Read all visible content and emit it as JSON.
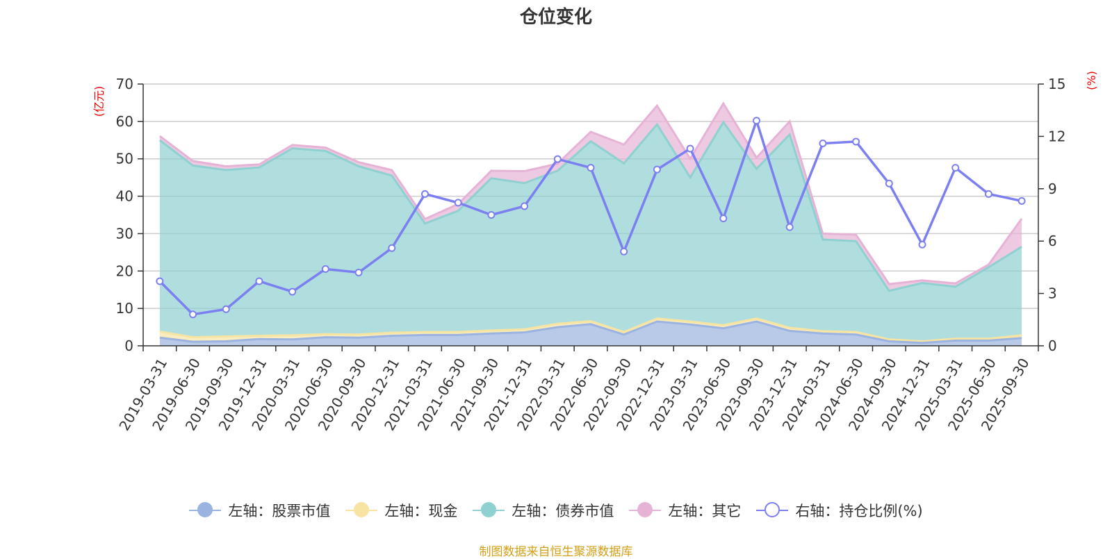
{
  "chart_data": {
    "type": "area",
    "title": "仓位变化",
    "categories": [
      "2019-03-31",
      "2019-06-30",
      "2019-09-30",
      "2019-12-31",
      "2020-03-31",
      "2020-06-30",
      "2020-09-30",
      "2020-12-31",
      "2021-03-31",
      "2021-06-30",
      "2021-09-30",
      "2021-12-31",
      "2022-03-31",
      "2022-06-30",
      "2022-09-30",
      "2022-12-31",
      "2023-03-31",
      "2023-06-30",
      "2023-09-30",
      "2023-12-31",
      "2024-03-31",
      "2024-06-30",
      "2024-09-30",
      "2024-12-31",
      "2025-03-31",
      "2025-06-30",
      "2025-09-30"
    ],
    "left_axis": {
      "label": "(亿元)",
      "ylim": [
        0,
        70
      ],
      "ticks": [
        0,
        10,
        20,
        30,
        40,
        50,
        60,
        70
      ]
    },
    "right_axis": {
      "label": "(%)",
      "ylim": [
        0,
        15
      ],
      "ticks": [
        0,
        3,
        6,
        9,
        12,
        15
      ]
    },
    "stacked": true,
    "series": [
      {
        "name": "左轴：股票市值",
        "axis": "left",
        "type": "area",
        "color": "#9bb3e0",
        "values": [
          2.2,
          1.1,
          1.2,
          1.8,
          1.7,
          2.3,
          2.2,
          2.7,
          2.9,
          2.9,
          3.3,
          3.6,
          5.0,
          5.8,
          3.0,
          6.5,
          5.7,
          4.7,
          6.5,
          4.0,
          3.3,
          3.0,
          1.2,
          0.8,
          1.4,
          1.4,
          2.1
        ]
      },
      {
        "name": "左轴：现金",
        "axis": "left",
        "type": "area",
        "color": "#f7e4a3",
        "values": [
          1.6,
          1.2,
          1.3,
          0.9,
          1.1,
          0.8,
          0.8,
          0.8,
          0.8,
          0.8,
          0.8,
          0.8,
          0.9,
          0.8,
          0.7,
          0.8,
          0.8,
          0.8,
          0.8,
          0.8,
          0.6,
          0.7,
          0.5,
          0.4,
          0.5,
          0.5,
          0.7
        ]
      },
      {
        "name": "左轴：债券市值",
        "axis": "left",
        "type": "area",
        "color": "#8fd0d0",
        "values": [
          51.2,
          45.9,
          44.5,
          45.0,
          50.0,
          49.0,
          45.0,
          42.0,
          29.0,
          32.4,
          40.7,
          39.1,
          40.9,
          48.1,
          45.1,
          51.9,
          38.5,
          54.3,
          40.0,
          51.7,
          24.5,
          24.3,
          13.0,
          15.6,
          13.9,
          19.1,
          23.7
        ]
      },
      {
        "name": "左轴：其它",
        "axis": "left",
        "type": "area",
        "color": "#e6b3d6",
        "values": [
          1.1,
          1.2,
          1.0,
          0.8,
          0.9,
          0.9,
          1.1,
          1.5,
          1.2,
          1.8,
          2.0,
          3.2,
          1.9,
          2.5,
          5.0,
          5.0,
          5.0,
          5.0,
          3.0,
          3.5,
          1.6,
          1.7,
          1.8,
          0.7,
          0.9,
          0.7,
          7.5
        ]
      },
      {
        "name": "右轴：持仓比例(%)",
        "axis": "right",
        "type": "line",
        "color": "#7b7ff0",
        "values": [
          3.7,
          1.8,
          2.1,
          3.7,
          3.1,
          4.4,
          4.2,
          5.6,
          8.7,
          8.2,
          7.5,
          8.0,
          10.7,
          10.2,
          5.4,
          10.1,
          11.3,
          7.3,
          12.9,
          6.8,
          11.6,
          11.7,
          9.3,
          5.8,
          10.2,
          8.7,
          8.3
        ]
      }
    ]
  },
  "source_text": "制图数据来自恒生聚源数据库"
}
